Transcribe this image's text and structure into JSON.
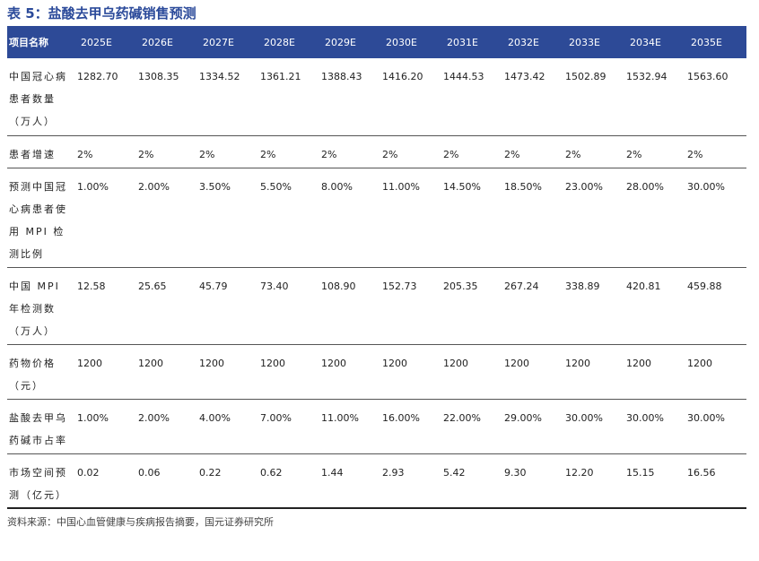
{
  "title": "表 5：盐酸去甲乌药碱销售预测",
  "headers": [
    "项目名称",
    "2025E",
    "2026E",
    "2027E",
    "2028E",
    "2029E",
    "2030E",
    "2031E",
    "2032E",
    "2033E",
    "2034E",
    "2035E"
  ],
  "rows": [
    [
      "中国冠心病患者数量（万人）",
      "1282.70",
      "1308.35",
      "1334.52",
      "1361.21",
      "1388.43",
      "1416.20",
      "1444.53",
      "1473.42",
      "1502.89",
      "1532.94",
      "1563.60"
    ],
    [
      "患者增速",
      "2%",
      "2%",
      "2%",
      "2%",
      "2%",
      "2%",
      "2%",
      "2%",
      "2%",
      "2%",
      "2%"
    ],
    [
      "预测中国冠心病患者使用 MPI 检测比例",
      "1.00%",
      "2.00%",
      "3.50%",
      "5.50%",
      "8.00%",
      "11.00%",
      "14.50%",
      "18.50%",
      "23.00%",
      "28.00%",
      "30.00%"
    ],
    [
      "中国 MPI 年检测数（万人）",
      "12.58",
      "25.65",
      "45.79",
      "73.40",
      "108.90",
      "152.73",
      "205.35",
      "267.24",
      "338.89",
      "420.81",
      "459.88"
    ],
    [
      "药物价格（元）",
      "1200",
      "1200",
      "1200",
      "1200",
      "1200",
      "1200",
      "1200",
      "1200",
      "1200",
      "1200",
      "1200"
    ],
    [
      "盐酸去甲乌药碱市占率",
      "1.00%",
      "2.00%",
      "4.00%",
      "7.00%",
      "11.00%",
      "16.00%",
      "22.00%",
      "29.00%",
      "30.00%",
      "30.00%",
      "30.00%"
    ],
    [
      "市场空间预测（亿元）",
      "0.02",
      "0.06",
      "0.22",
      "0.62",
      "1.44",
      "2.93",
      "5.42",
      "9.30",
      "12.20",
      "15.15",
      "16.56"
    ]
  ],
  "source": "资料来源：中国心血管健康与疾病报告摘要，国元证券研究所"
}
